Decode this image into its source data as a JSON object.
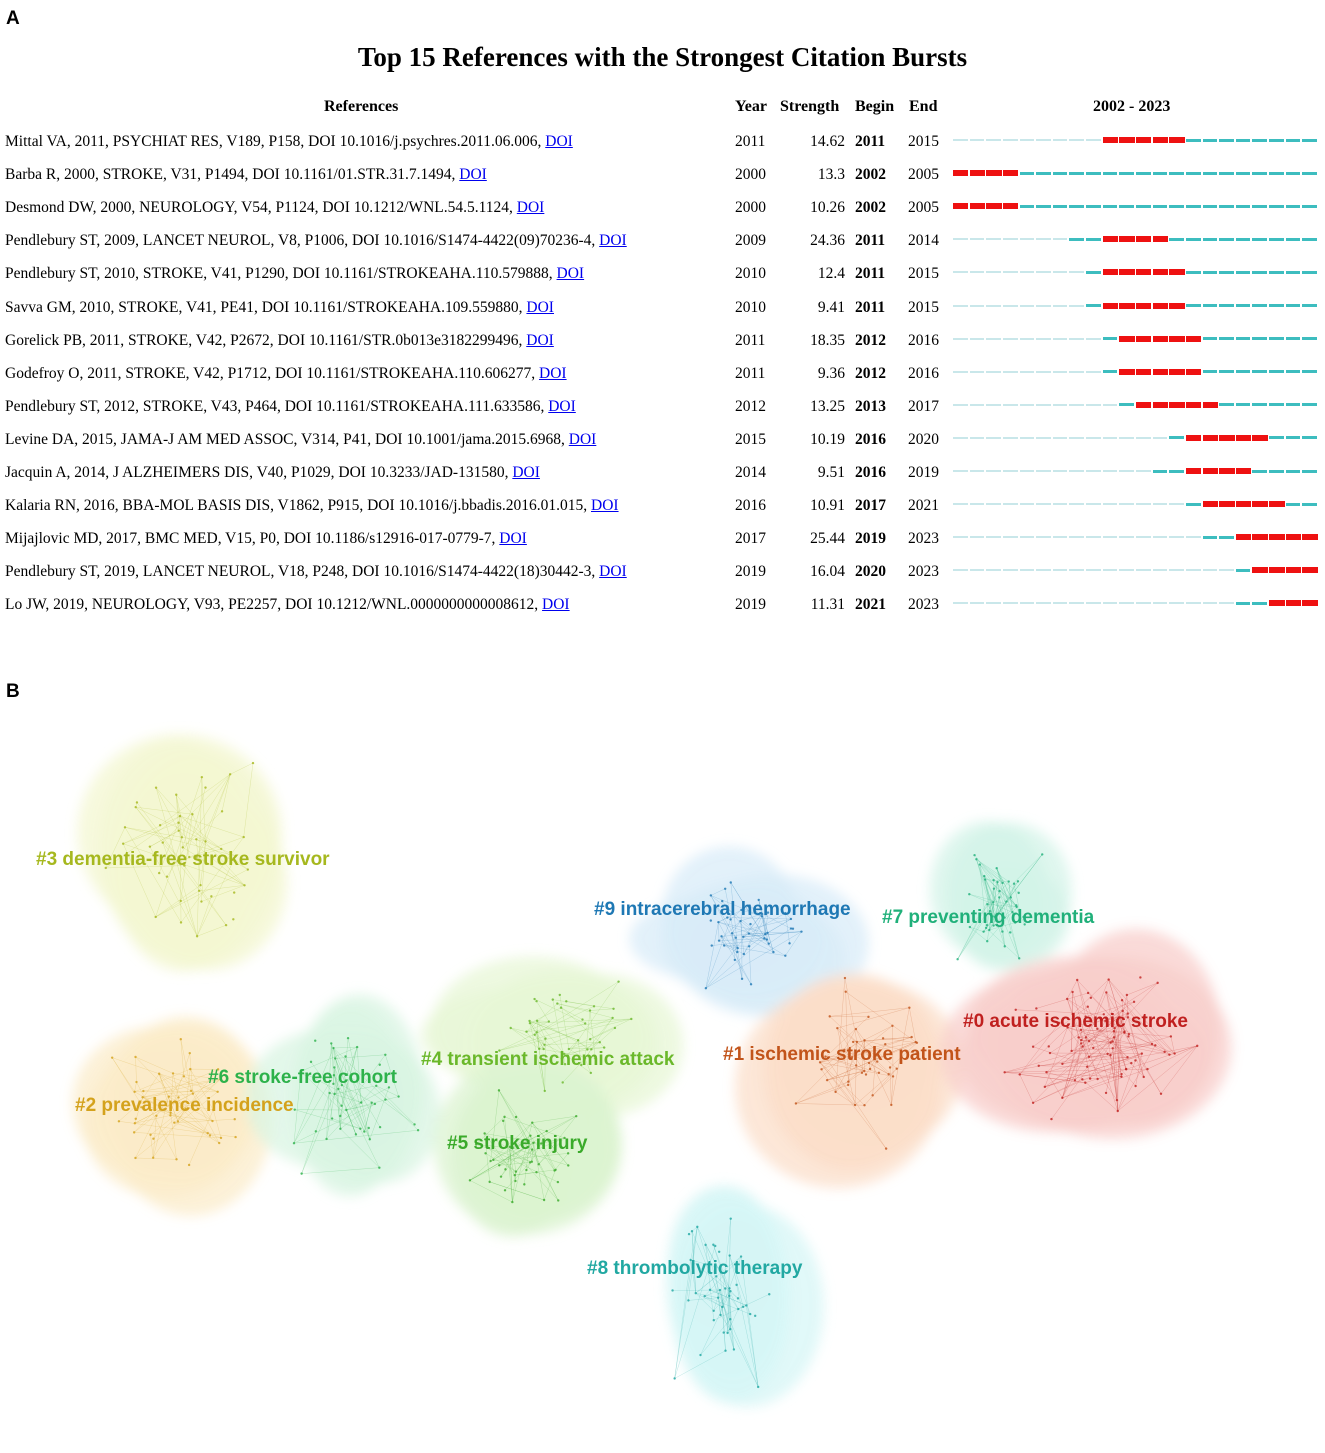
{
  "panel_a": {
    "label": "A"
  },
  "panel_b": {
    "label": "B"
  },
  "chart_data": [
    {
      "type": "table",
      "title": "Top 15 References with the Strongest Citation Bursts",
      "columns": [
        "References",
        "Year",
        "Strength",
        "Begin",
        "End",
        "2002 - 2023"
      ],
      "timeline_range": [
        2002,
        2023
      ],
      "link_text": "DOI",
      "rows": [
        {
          "ref": "Mittal VA, 2011, PSYCHIAT RES, V189, P158, DOI 10.1016/j.psychres.2011.06.006, ",
          "year": "2011",
          "strength": "14.62",
          "begin": "2011",
          "end": "2015"
        },
        {
          "ref": "Barba R, 2000, STROKE, V31, P1494, DOI 10.1161/01.STR.31.7.1494, ",
          "year": "2000",
          "strength": "13.3",
          "begin": "2002",
          "end": "2005"
        },
        {
          "ref": "Desmond DW, 2000, NEUROLOGY, V54, P1124, DOI 10.1212/WNL.54.5.1124, ",
          "year": "2000",
          "strength": "10.26",
          "begin": "2002",
          "end": "2005"
        },
        {
          "ref": "Pendlebury ST, 2009, LANCET NEUROL, V8, P1006, DOI 10.1016/S1474-4422(09)70236-4, ",
          "year": "2009",
          "strength": "24.36",
          "begin": "2011",
          "end": "2014"
        },
        {
          "ref": "Pendlebury ST, 2010, STROKE, V41, P1290, DOI 10.1161/STROKEAHA.110.579888, ",
          "year": "2010",
          "strength": "12.4",
          "begin": "2011",
          "end": "2015"
        },
        {
          "ref": "Savva GM, 2010, STROKE, V41, PE41, DOI 10.1161/STROKEAHA.109.559880, ",
          "year": "2010",
          "strength": "9.41",
          "begin": "2011",
          "end": "2015"
        },
        {
          "ref": "Gorelick PB, 2011, STROKE, V42, P2672, DOI 10.1161/STR.0b013e3182299496, ",
          "year": "2011",
          "strength": "18.35",
          "begin": "2012",
          "end": "2016"
        },
        {
          "ref": "Godefroy O, 2011, STROKE, V42, P1712, DOI 10.1161/STROKEAHA.110.606277, ",
          "year": "2011",
          "strength": "9.36",
          "begin": "2012",
          "end": "2016"
        },
        {
          "ref": "Pendlebury ST, 2012, STROKE, V43, P464, DOI 10.1161/STROKEAHA.111.633586, ",
          "year": "2012",
          "strength": "13.25",
          "begin": "2013",
          "end": "2017"
        },
        {
          "ref": "Levine DA, 2015, JAMA-J AM MED ASSOC, V314, P41, DOI 10.1001/jama.2015.6968, ",
          "year": "2015",
          "strength": "10.19",
          "begin": "2016",
          "end": "2020"
        },
        {
          "ref": "Jacquin A, 2014, J ALZHEIMERS DIS, V40, P1029, DOI 10.3233/JAD-131580, ",
          "year": "2014",
          "strength": "9.51",
          "begin": "2016",
          "end": "2019"
        },
        {
          "ref": "Kalaria RN, 2016, BBA-MOL BASIS DIS, V1862, P915, DOI 10.1016/j.bbadis.2016.01.015, ",
          "year": "2016",
          "strength": "10.91",
          "begin": "2017",
          "end": "2021"
        },
        {
          "ref": "Mijajlovic MD, 2017, BMC MED, V15, P0, DOI 10.1186/s12916-017-0779-7, ",
          "year": "2017",
          "strength": "25.44",
          "begin": "2019",
          "end": "2023"
        },
        {
          "ref": "Pendlebury ST, 2019, LANCET NEUROL, V18, P248, DOI 10.1016/S1474-4422(18)30442-3, ",
          "year": "2019",
          "strength": "16.04",
          "begin": "2020",
          "end": "2023"
        },
        {
          "ref": "Lo JW, 2019, NEUROLOGY, V93, PE2257, DOI 10.1212/WNL.0000000000008612, ",
          "year": "2019",
          "strength": "11.31",
          "begin": "2021",
          "end": "2023"
        }
      ],
      "colors": {
        "burst": "#ee1111",
        "active": "#3dbdbf",
        "inactive": "#c9e7ea"
      }
    },
    {
      "type": "network",
      "clusters": [
        {
          "id": 0,
          "label": "#0 acute ischemic stroke",
          "color": "#c0201f",
          "hull": "#f7c6c2"
        },
        {
          "id": 1,
          "label": "#1 ischemic stroke patient",
          "color": "#c2541a",
          "hull": "#fbd8c0"
        },
        {
          "id": 2,
          "label": "#2 prevalence incidence",
          "color": "#d4a21c",
          "hull": "#fbe8c0"
        },
        {
          "id": 3,
          "label": "#3 dementia-free stroke survivor",
          "color": "#a6b81e",
          "hull": "#f1f5c9"
        },
        {
          "id": 4,
          "label": "#4 transient ischemic attack",
          "color": "#6ab82a",
          "hull": "#e3f5cf"
        },
        {
          "id": 5,
          "label": "#5 stroke injury",
          "color": "#3aaa2a",
          "hull": "#d5f2c8"
        },
        {
          "id": 6,
          "label": "#6 stroke-free cohort",
          "color": "#2db24b",
          "hull": "#d3f3dd"
        },
        {
          "id": 7,
          "label": "#7 preventing dementia",
          "color": "#20b07a",
          "hull": "#ccf2e4"
        },
        {
          "id": 8,
          "label": "#8 thrombolytic therapy",
          "color": "#21a8a2",
          "hull": "#cff4f4"
        },
        {
          "id": 9,
          "label": "#9 intracerebral hemorrhage",
          "color": "#1e78b4",
          "hull": "#d2e8f7"
        }
      ]
    }
  ]
}
